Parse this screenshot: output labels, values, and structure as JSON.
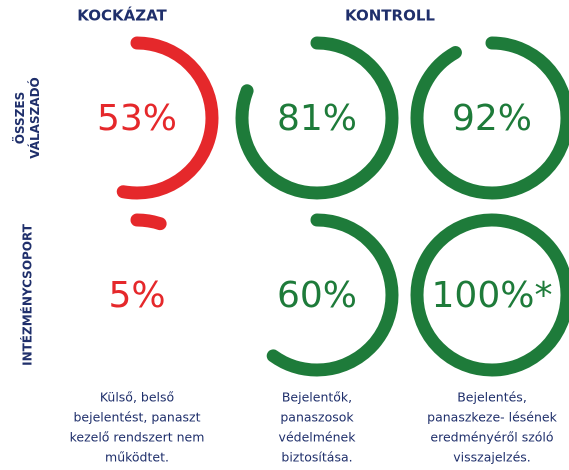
{
  "headers": {
    "risk": "KOCKÁZAT",
    "control": "KONTROLL"
  },
  "rows": [
    {
      "label": [
        "ÖSSZES",
        "VÁLASZADÓ"
      ],
      "gauges": [
        {
          "value": 53,
          "value_label": "53%",
          "color": "#e5282b"
        },
        {
          "value": 81,
          "value_label": "81%",
          "color": "#1e7b3a"
        },
        {
          "value": 92,
          "value_label": "92%",
          "color": "#1e7b3a"
        }
      ]
    },
    {
      "label": [
        "INTÉZMÉNYCSOPORT"
      ],
      "gauges": [
        {
          "value": 5,
          "value_label": "5%",
          "color": "#e5282b"
        },
        {
          "value": 60,
          "value_label": "60%",
          "color": "#1e7b3a"
        },
        {
          "value": 100,
          "value_label": "100%*",
          "color": "#1e7b3a"
        }
      ]
    }
  ],
  "captions": [
    [
      "Külső, belső",
      "bejelentést, panaszt",
      "kezelő rendszert nem",
      "működtet."
    ],
    [
      "Bejelentők,",
      "panaszosok",
      "védelmének",
      "biztosítása."
    ],
    [
      "Bejelentés,",
      "panaszkeze- lésének",
      "eredményéről szóló",
      "visszajelzés."
    ]
  ]
}
